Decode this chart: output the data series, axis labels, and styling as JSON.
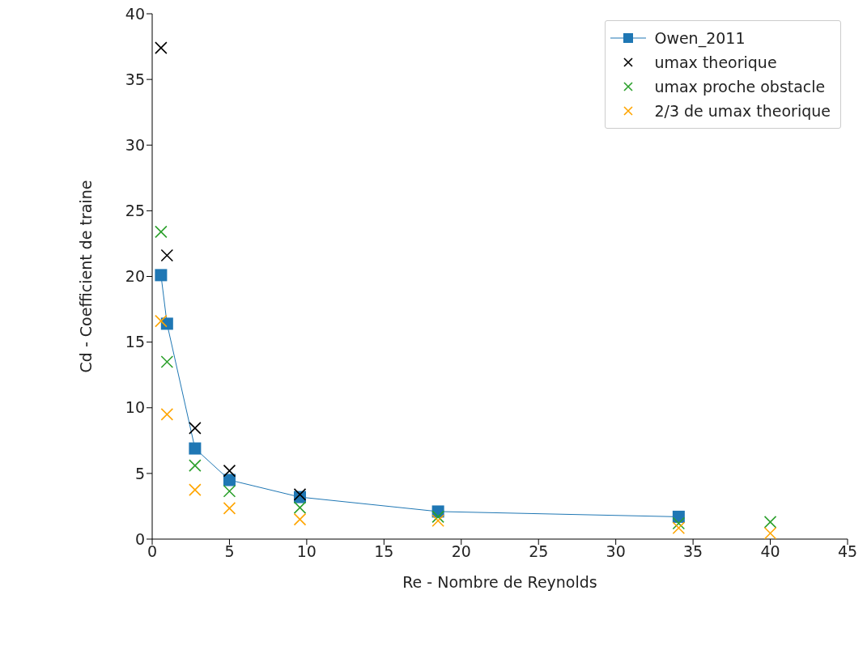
{
  "chart_data": {
    "type": "scatter",
    "xlabel": "Re - Nombre de Reynolds",
    "ylabel": "Cd - Coefficient de traine",
    "xlim": [
      0,
      45
    ],
    "xticks": [
      0,
      5,
      10,
      15,
      20,
      25,
      30,
      35,
      40,
      45
    ],
    "ylim": [
      0,
      40
    ],
    "yticks": [
      0,
      5,
      10,
      15,
      20,
      25,
      30,
      35,
      40
    ],
    "grid": false,
    "legend": "top right",
    "series": [
      {
        "name": "Owen_2011",
        "type": "line",
        "marker": "square",
        "color": "#1f77b4",
        "x": [
          0.57,
          0.96,
          2.77,
          5.0,
          9.56,
          18.5,
          34.07
        ],
        "values": [
          20.1,
          16.4,
          6.9,
          4.5,
          3.2,
          2.1,
          1.7
        ]
      },
      {
        "name": "umax theorique",
        "marker": "cross",
        "color": "#000000",
        "x": [
          0.57,
          0.96,
          2.77,
          5.0,
          9.56
        ],
        "values": [
          37.4,
          21.6,
          8.45,
          5.2,
          3.4
        ]
      },
      {
        "name": "umax proche obstacle",
        "marker": "cross",
        "color": "#2ca02c",
        "x": [
          0.57,
          0.96,
          2.77,
          5.0,
          9.56,
          18.5,
          34.07,
          40
        ],
        "values": [
          23.4,
          13.5,
          5.6,
          3.65,
          2.4,
          1.7,
          1.2,
          1.3
        ]
      },
      {
        "name": "2/3 de umax theorique",
        "marker": "cross",
        "color": "#ffa500",
        "x": [
          0.57,
          0.96,
          2.77,
          5.0,
          9.56,
          18.5,
          34.07,
          40
        ],
        "values": [
          16.6,
          9.5,
          3.75,
          2.35,
          1.5,
          1.4,
          0.85,
          0.45
        ]
      }
    ]
  }
}
